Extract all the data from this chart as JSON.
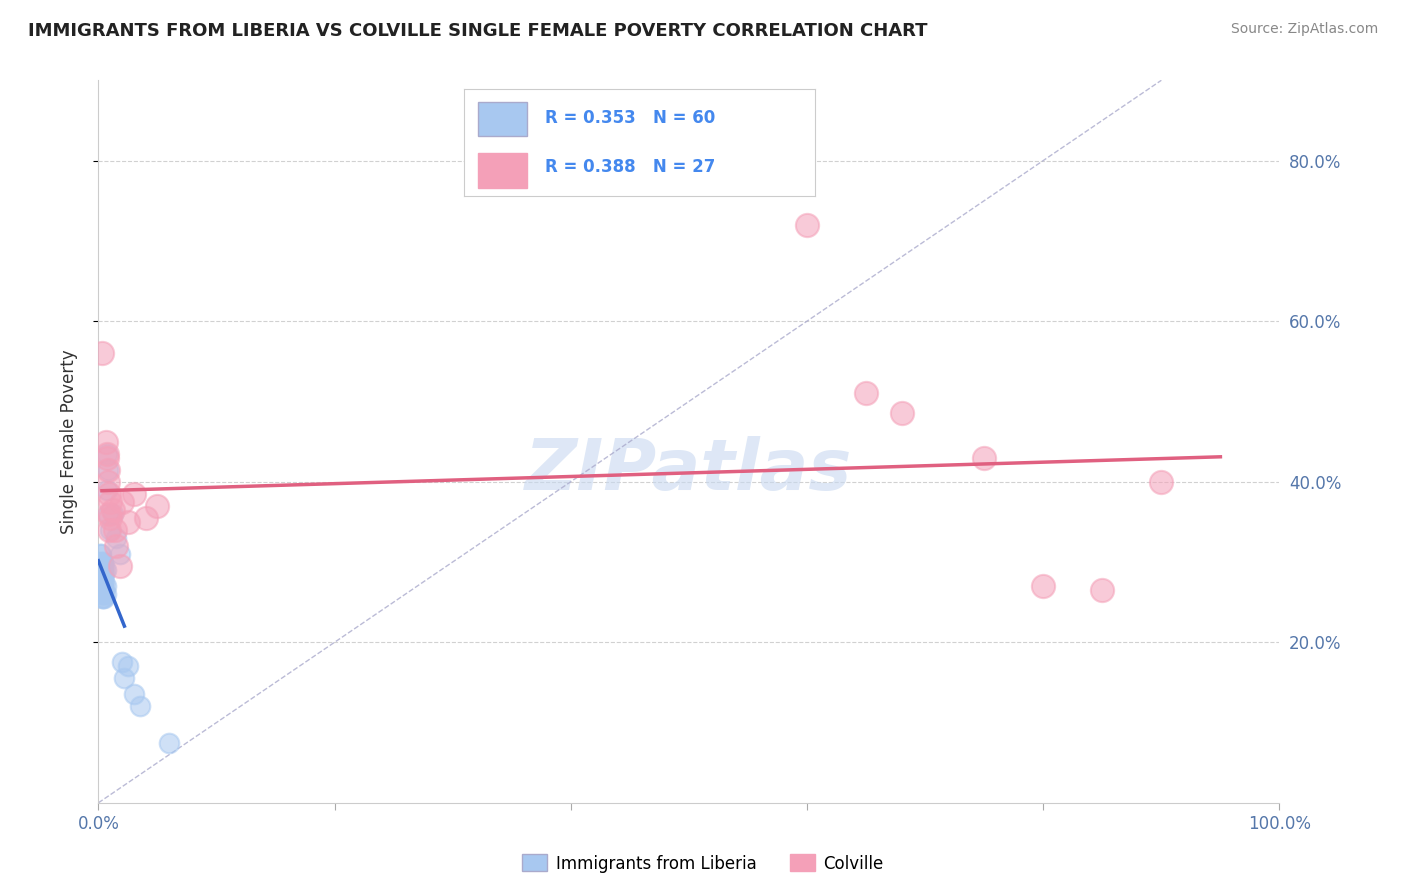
{
  "title": "IMMIGRANTS FROM LIBERIA VS COLVILLE SINGLE FEMALE POVERTY CORRELATION CHART",
  "source": "Source: ZipAtlas.com",
  "ylabel": "Single Female Poverty",
  "legend_label_blue": "Immigrants from Liberia",
  "legend_label_pink": "Colville",
  "R_blue": 0.353,
  "N_blue": 60,
  "R_pink": 0.388,
  "N_pink": 27,
  "watermark": "ZIPatlas",
  "blue_color": "#a8c8f0",
  "pink_color": "#f4a0b8",
  "blue_line_color": "#3366cc",
  "pink_line_color": "#e06080",
  "blue_dots": [
    [
      0.0,
      0.29
    ],
    [
      0.0,
      0.285
    ],
    [
      0.0,
      0.28
    ],
    [
      0.0,
      0.275
    ],
    [
      0.0,
      0.295
    ],
    [
      0.0,
      0.27
    ],
    [
      0.0,
      0.3
    ],
    [
      0.0,
      0.265
    ],
    [
      0.001,
      0.31
    ],
    [
      0.001,
      0.295
    ],
    [
      0.001,
      0.29
    ],
    [
      0.001,
      0.285
    ],
    [
      0.001,
      0.28
    ],
    [
      0.001,
      0.275
    ],
    [
      0.001,
      0.27
    ],
    [
      0.001,
      0.265
    ],
    [
      0.002,
      0.31
    ],
    [
      0.002,
      0.295
    ],
    [
      0.002,
      0.29
    ],
    [
      0.002,
      0.285
    ],
    [
      0.002,
      0.28
    ],
    [
      0.002,
      0.275
    ],
    [
      0.002,
      0.27
    ],
    [
      0.002,
      0.265
    ],
    [
      0.003,
      0.3
    ],
    [
      0.003,
      0.295
    ],
    [
      0.003,
      0.29
    ],
    [
      0.003,
      0.28
    ],
    [
      0.003,
      0.275
    ],
    [
      0.003,
      0.265
    ],
    [
      0.003,
      0.26
    ],
    [
      0.003,
      0.255
    ],
    [
      0.004,
      0.3
    ],
    [
      0.004,
      0.29
    ],
    [
      0.004,
      0.28
    ],
    [
      0.004,
      0.27
    ],
    [
      0.004,
      0.26
    ],
    [
      0.004,
      0.255
    ],
    [
      0.005,
      0.295
    ],
    [
      0.005,
      0.285
    ],
    [
      0.005,
      0.275
    ],
    [
      0.005,
      0.265
    ],
    [
      0.005,
      0.255
    ],
    [
      0.006,
      0.29
    ],
    [
      0.006,
      0.27
    ],
    [
      0.006,
      0.26
    ],
    [
      0.007,
      0.435
    ],
    [
      0.007,
      0.39
    ],
    [
      0.008,
      0.415
    ],
    [
      0.008,
      0.36
    ],
    [
      0.01,
      0.34
    ],
    [
      0.012,
      0.36
    ],
    [
      0.015,
      0.33
    ],
    [
      0.018,
      0.31
    ],
    [
      0.02,
      0.175
    ],
    [
      0.022,
      0.155
    ],
    [
      0.025,
      0.17
    ],
    [
      0.03,
      0.135
    ],
    [
      0.035,
      0.12
    ],
    [
      0.06,
      0.075
    ]
  ],
  "pink_dots": [
    [
      0.003,
      0.56
    ],
    [
      0.006,
      0.45
    ],
    [
      0.007,
      0.435
    ],
    [
      0.007,
      0.43
    ],
    [
      0.008,
      0.415
    ],
    [
      0.008,
      0.4
    ],
    [
      0.009,
      0.385
    ],
    [
      0.009,
      0.36
    ],
    [
      0.009,
      0.34
    ],
    [
      0.01,
      0.375
    ],
    [
      0.01,
      0.355
    ],
    [
      0.012,
      0.365
    ],
    [
      0.014,
      0.34
    ],
    [
      0.015,
      0.32
    ],
    [
      0.018,
      0.295
    ],
    [
      0.02,
      0.375
    ],
    [
      0.025,
      0.35
    ],
    [
      0.03,
      0.385
    ],
    [
      0.04,
      0.355
    ],
    [
      0.05,
      0.37
    ],
    [
      0.6,
      0.72
    ],
    [
      0.65,
      0.51
    ],
    [
      0.68,
      0.485
    ],
    [
      0.75,
      0.43
    ],
    [
      0.8,
      0.27
    ],
    [
      0.85,
      0.265
    ],
    [
      0.9,
      0.4
    ]
  ],
  "xlim": [
    0.0,
    1.0
  ],
  "ylim": [
    0.0,
    0.9
  ],
  "bg_color": "#ffffff",
  "plot_bg_color": "#ffffff",
  "grid_color": "#cccccc"
}
